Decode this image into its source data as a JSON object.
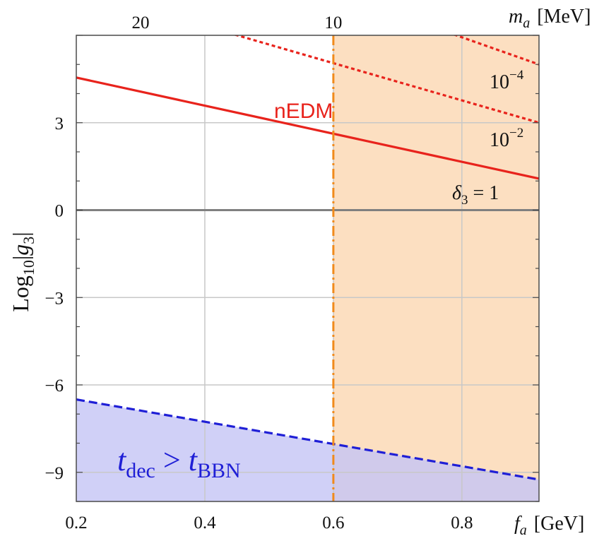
{
  "chart_data": {
    "type": "line",
    "title": "",
    "xlabel": {
      "var": "f",
      "sub": "a",
      "unit": "[GeV]"
    },
    "x2label": {
      "var": "m",
      "sub": "a",
      "unit": "[MeV]"
    },
    "ylabel": {
      "pre": "Log",
      "sub": "10",
      "open": "|",
      "var": "g",
      "varsub": "3",
      "close": "|"
    },
    "xlim": [
      0.2,
      0.92
    ],
    "ylim": [
      -10.0,
      6.0
    ],
    "x_ticks": [
      0.2,
      0.4,
      0.6,
      0.8
    ],
    "x_tick_labels": [
      "0.2",
      "0.4",
      "0.6",
      "0.8"
    ],
    "x2_ticks": [
      20,
      10
    ],
    "x2_tick_labels": [
      "20",
      "10"
    ],
    "y_ticks": [
      3,
      0,
      -3,
      -6,
      -9
    ],
    "y_tick_labels": [
      "3",
      "0",
      "−3",
      "−6",
      "−9"
    ],
    "grid": true,
    "series": [
      {
        "name": "nEDM",
        "style": "solid",
        "color": "#e8231c",
        "x": [
          0.2,
          0.92
        ],
        "y": [
          4.55,
          1.08
        ]
      },
      {
        "name": "10−2",
        "style": "dotted",
        "color": "#e8231c",
        "x": [
          0.2,
          0.92
        ],
        "y": [
          7.6,
          3.0
        ]
      },
      {
        "name": "10−4",
        "style": "dotted",
        "color": "#e8231c",
        "x": [
          0.2,
          0.92
        ],
        "y": [
          10.6,
          5.0
        ]
      },
      {
        "name": "δ₃ = 1",
        "style": "solid",
        "color": "#808080",
        "x": [
          0.2,
          0.92
        ],
        "y": [
          0,
          0
        ]
      },
      {
        "name": "t_dec > t_BBN",
        "style": "dashed",
        "color": "#1f1fd6",
        "x": [
          0.2,
          0.92
        ],
        "y": [
          -6.5,
          -9.25
        ]
      }
    ],
    "vertical_line": {
      "x": 0.6,
      "color": "#f08a1c",
      "style": "dash-dot"
    },
    "shaded_regions": [
      {
        "kind": "x_greater",
        "x_from": 0.6,
        "color": "#fbd9b6"
      },
      {
        "kind": "below_series",
        "series": "t_dec > t_BBN",
        "color": "#c4c4f5"
      }
    ],
    "annotations": {
      "nEDM": "nEDM",
      "d2": {
        "base": "10",
        "exp": "−2"
      },
      "d4": {
        "base": "10",
        "exp": "−4"
      },
      "delta": {
        "sym": "δ",
        "sub": "3",
        "rest": " = 1"
      },
      "bbn": {
        "t1": "t",
        "sub1": "dec",
        "op": " > ",
        "t2": "t",
        "sub2": "BBN"
      }
    },
    "colors": {
      "red": "#e8231c",
      "blue": "#1f1fd6",
      "orange": "#f08a1c",
      "grid": "#c8c8c8",
      "zero": "#808080"
    }
  }
}
